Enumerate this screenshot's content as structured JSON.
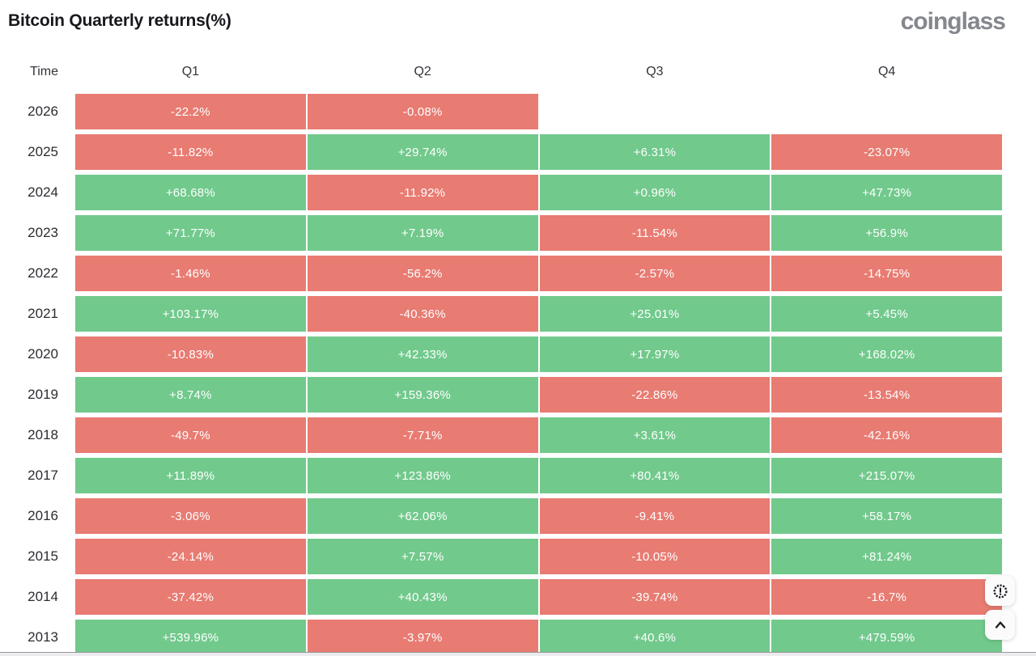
{
  "header": {
    "title": "Bitcoin Quarterly returns(%)",
    "logo_text": "coinglass"
  },
  "table": {
    "time_label": "Time",
    "columns": [
      "Q1",
      "Q2",
      "Q3",
      "Q4"
    ],
    "rows": [
      {
        "year": "2026",
        "values": [
          "-22.2%",
          "-0.08%",
          null,
          null
        ]
      },
      {
        "year": "2025",
        "values": [
          "-11.82%",
          "+29.74%",
          "+6.31%",
          "-23.07%"
        ]
      },
      {
        "year": "2024",
        "values": [
          "+68.68%",
          "-11.92%",
          "+0.96%",
          "+47.73%"
        ]
      },
      {
        "year": "2023",
        "values": [
          "+71.77%",
          "+7.19%",
          "-11.54%",
          "+56.9%"
        ]
      },
      {
        "year": "2022",
        "values": [
          "-1.46%",
          "-56.2%",
          "-2.57%",
          "-14.75%"
        ]
      },
      {
        "year": "2021",
        "values": [
          "+103.17%",
          "-40.36%",
          "+25.01%",
          "+5.45%"
        ]
      },
      {
        "year": "2020",
        "values": [
          "-10.83%",
          "+42.33%",
          "+17.97%",
          "+168.02%"
        ]
      },
      {
        "year": "2019",
        "values": [
          "+8.74%",
          "+159.36%",
          "-22.86%",
          "-13.54%"
        ]
      },
      {
        "year": "2018",
        "values": [
          "-49.7%",
          "-7.71%",
          "+3.61%",
          "-42.16%"
        ]
      },
      {
        "year": "2017",
        "values": [
          "+11.89%",
          "+123.86%",
          "+80.41%",
          "+215.07%"
        ]
      },
      {
        "year": "2016",
        "values": [
          "-3.06%",
          "+62.06%",
          "-9.41%",
          "+58.17%"
        ]
      },
      {
        "year": "2015",
        "values": [
          "-24.14%",
          "+7.57%",
          "-10.05%",
          "+81.24%"
        ]
      },
      {
        "year": "2014",
        "values": [
          "-37.42%",
          "+40.43%",
          "-39.74%",
          "-16.7%"
        ]
      },
      {
        "year": "2013",
        "values": [
          "+539.96%",
          "-3.97%",
          "+40.6%",
          "+479.59%"
        ]
      }
    ]
  },
  "colors": {
    "positive": "#71c98c",
    "negative": "#e87b72",
    "cell_text": "#ffffff"
  },
  "chart_data": {
    "type": "heatmap",
    "title": "Bitcoin Quarterly returns(%)",
    "columns": [
      "Q1",
      "Q2",
      "Q3",
      "Q4"
    ],
    "rows": [
      "2026",
      "2025",
      "2024",
      "2023",
      "2022",
      "2021",
      "2020",
      "2019",
      "2018",
      "2017",
      "2016",
      "2015",
      "2014",
      "2013"
    ],
    "values_pct": [
      [
        -22.2,
        -0.08,
        null,
        null
      ],
      [
        -11.82,
        29.74,
        6.31,
        -23.07
      ],
      [
        68.68,
        -11.92,
        0.96,
        47.73
      ],
      [
        71.77,
        7.19,
        -11.54,
        56.9
      ],
      [
        -1.46,
        -56.2,
        -2.57,
        -14.75
      ],
      [
        103.17,
        -40.36,
        25.01,
        5.45
      ],
      [
        -10.83,
        42.33,
        17.97,
        168.02
      ],
      [
        8.74,
        159.36,
        -22.86,
        -13.54
      ],
      [
        -49.7,
        -7.71,
        3.61,
        -42.16
      ],
      [
        11.89,
        123.86,
        80.41,
        215.07
      ],
      [
        -3.06,
        62.06,
        -9.41,
        58.17
      ],
      [
        -24.14,
        7.57,
        -10.05,
        81.24
      ],
      [
        -37.42,
        40.43,
        -39.74,
        -16.7
      ],
      [
        539.96,
        -3.97,
        40.6,
        479.59
      ]
    ],
    "legend": "green = positive quarterly return, red = negative quarterly return",
    "legend_position": "none",
    "grid": false
  }
}
